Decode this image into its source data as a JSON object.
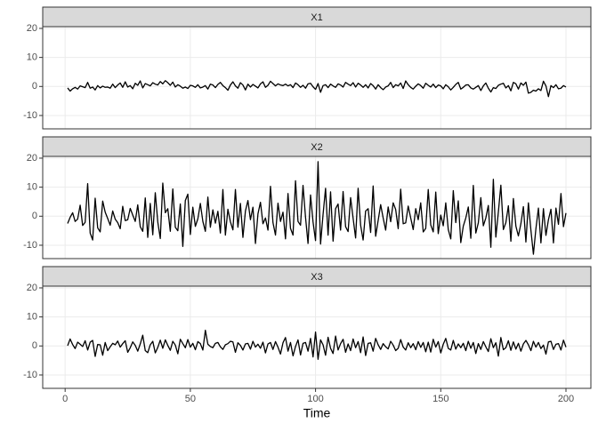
{
  "chart_data": {
    "type": "line",
    "facet": true,
    "x_label": "Time",
    "x": [
      1,
      2,
      3,
      4,
      5,
      6,
      7,
      8,
      9,
      10,
      11,
      12,
      13,
      14,
      15,
      16,
      17,
      18,
      19,
      20,
      21,
      22,
      23,
      24,
      25,
      26,
      27,
      28,
      29,
      30,
      31,
      32,
      33,
      34,
      35,
      36,
      37,
      38,
      39,
      40,
      41,
      42,
      43,
      44,
      45,
      46,
      47,
      48,
      49,
      50,
      51,
      52,
      53,
      54,
      55,
      56,
      57,
      58,
      59,
      60,
      61,
      62,
      63,
      64,
      65,
      66,
      67,
      68,
      69,
      70,
      71,
      72,
      73,
      74,
      75,
      76,
      77,
      78,
      79,
      80,
      81,
      82,
      83,
      84,
      85,
      86,
      87,
      88,
      89,
      90,
      91,
      92,
      93,
      94,
      95,
      96,
      97,
      98,
      99,
      100,
      101,
      102,
      103,
      104,
      105,
      106,
      107,
      108,
      109,
      110,
      111,
      112,
      113,
      114,
      115,
      116,
      117,
      118,
      119,
      120,
      121,
      122,
      123,
      124,
      125,
      126,
      127,
      128,
      129,
      130,
      131,
      132,
      133,
      134,
      135,
      136,
      137,
      138,
      139,
      140,
      141,
      142,
      143,
      144,
      145,
      146,
      147,
      148,
      149,
      150,
      151,
      152,
      153,
      154,
      155,
      156,
      157,
      158,
      159,
      160,
      161,
      162,
      163,
      164,
      165,
      166,
      167,
      168,
      169,
      170,
      171,
      172,
      173,
      174,
      175,
      176,
      177,
      178,
      179,
      180,
      181,
      182,
      183,
      184,
      185,
      186,
      187,
      188,
      189,
      190,
      191,
      192,
      193,
      194,
      195,
      196,
      197,
      198,
      199,
      200
    ],
    "series": [
      {
        "name": "X1",
        "color": "#000000",
        "values": [
          -0.5,
          -1.6,
          -0.8,
          -0.3,
          -0.9,
          0.2,
          -0.1,
          -0.4,
          1.4,
          -0.6,
          -0.2,
          -1.2,
          0.3,
          -0.5,
          0.1,
          -0.3,
          -0.2,
          -0.6,
          0.8,
          -0.4,
          0.5,
          1.2,
          -0.3,
          1.6,
          -0.2,
          0.3,
          -0.8,
          1.1,
          0.4,
          1.9,
          -0.5,
          1.0,
          0.6,
          0.2,
          1.3,
          0.8,
          0.5,
          1.7,
          0.9,
          2.0,
          1.3,
          0.4,
          1.5,
          -0.2,
          0.6,
          0.1,
          -0.6,
          -0.2,
          -0.7,
          0.4,
          0.2,
          -0.3,
          0.6,
          -0.5,
          -0.2,
          0.3,
          -0.9,
          0.8,
          0.5,
          -0.4,
          0.7,
          1.4,
          0.3,
          -0.4,
          -1.3,
          0.5,
          1.6,
          0.2,
          -0.6,
          1.3,
          0.5,
          -1.2,
          0.8,
          -0.2,
          0.7,
          0.1,
          -0.5,
          0.9,
          1.6,
          -0.3,
          0.4,
          1.8,
          1.0,
          0.2,
          0.9,
          0.5,
          0.3,
          0.8,
          0.2,
          0.6,
          -0.4,
          1.2,
          0.6,
          -0.3,
          0.4,
          -0.6,
          0.9,
          1.1,
          -0.1,
          -1.0,
          1.0,
          -2.0,
          0.3,
          0.6,
          -0.4,
          0.8,
          0.2,
          -0.3,
          0.9,
          0.5,
          -0.2,
          1.4,
          0.8,
          0.3,
          1.3,
          -0.2,
          1.1,
          0.5,
          -0.3,
          0.6,
          -0.5,
          1.0,
          0.3,
          -0.9,
          0.6,
          -0.4,
          -1.1,
          -0.2,
          0.2,
          1.4,
          -0.4,
          0.6,
          0.2,
          1.2,
          -0.7,
          1.9,
          0.6,
          -0.3,
          -0.9,
          0.1,
          0.9,
          0.3,
          -0.6,
          1.1,
          0.4,
          -0.2,
          0.8,
          -0.4,
          0.5,
          0.2,
          -0.8,
          0.6,
          -0.1,
          -1.2,
          -0.3,
          0.7,
          1.4,
          -0.9,
          -0.3,
          0.5,
          0.6,
          -0.5,
          -0.9,
          -0.3,
          0.3,
          -1.4,
          0.2,
          1.2,
          -0.6,
          -1.9,
          -0.4,
          -0.7,
          0.4,
          0.8,
          1.1,
          -0.5,
          0.3,
          -1.5,
          1.4,
          0.9,
          -0.9,
          1.2,
          0.4,
          1.5,
          -2.3,
          -2.0,
          -1.3,
          -1.6,
          -0.8,
          -1.4,
          1.8,
          0.2,
          -3.5,
          0.3,
          -0.4,
          0.6,
          -0.8,
          -0.6,
          0.3,
          -0.2
        ]
      },
      {
        "name": "X2",
        "color": "#000000",
        "values": [
          -2.5,
          -0.4,
          1.2,
          -1.8,
          -1.0,
          3.8,
          -3.2,
          -2.1,
          11.2,
          -5.8,
          -8.2,
          6.2,
          -4.0,
          -5.4,
          5.2,
          1.4,
          -0.8,
          -3.1,
          1.8,
          -1.0,
          -2.2,
          -4.3,
          3.4,
          -1.5,
          -1.2,
          2.7,
          0.4,
          -1.8,
          3.9,
          -3.6,
          -5.2,
          6.3,
          -7.3,
          4.4,
          -6.4,
          8.1,
          -2.0,
          -7.7,
          11.4,
          1.2,
          2.6,
          -5.2,
          9.4,
          -3.8,
          -5.0,
          4.2,
          -10.4,
          5.4,
          7.6,
          -6.3,
          3.1,
          -3.5,
          -0.9,
          4.4,
          -1.8,
          -5.2,
          6.6,
          -3.8,
          2.2,
          -2.4,
          1.7,
          -5.8,
          9.2,
          -6.5,
          2.4,
          -1.9,
          -4.7,
          9.2,
          -3.8,
          4.4,
          -7.3,
          1.8,
          5.4,
          -1.2,
          3.1,
          -9.4,
          0.8,
          4.8,
          -2.6,
          -0.6,
          -4.8,
          10.3,
          -2.2,
          -6.5,
          4.5,
          -1.8,
          1.4,
          -7.8,
          7.8,
          -4.2,
          -6.5,
          12.2,
          -1.8,
          -3.1,
          10.6,
          -0.4,
          -9.4,
          7.3,
          -2.0,
          -8.4,
          18.8,
          -9.6,
          0.6,
          9.6,
          -6.5,
          8.4,
          -8.6,
          2.6,
          4.2,
          -4.8,
          8.5,
          -3.6,
          -5.3,
          6.4,
          -0.7,
          -7.5,
          9.6,
          -3.1,
          -8.2,
          1.8,
          2.6,
          -5.6,
          10.4,
          -6.9,
          -1.5,
          4.0,
          -0.6,
          -4.8,
          3.2,
          -1.9,
          4.6,
          2.3,
          -4.3,
          9.3,
          -2.6,
          -2.3,
          3.5,
          -0.6,
          -4.6,
          2.6,
          -1.2,
          4.6,
          -5.4,
          -4.2,
          9.2,
          -3.0,
          -5.4,
          8.3,
          -6.0,
          0.4,
          -3.3,
          4.6,
          -4.6,
          -7.8,
          8.8,
          -2.2,
          5.3,
          -9.1,
          -3.4,
          -0.6,
          3.2,
          -7.6,
          10.6,
          -5.8,
          -2.3,
          6.4,
          -3.3,
          -0.6,
          3.7,
          -10.7,
          12.7,
          -7.2,
          1.4,
          10.7,
          -4.6,
          -2.2,
          3.6,
          -8.6,
          6.1,
          -3.4,
          -6.8,
          -2.6,
          3.3,
          -8.9,
          4.6,
          -4.8,
          -13.1,
          -4.3,
          2.8,
          -9.2,
          2.6,
          -6.6,
          -1.2,
          2.4,
          -9.2,
          2.8,
          -2.8,
          7.8,
          -3.6,
          1.1
        ]
      },
      {
        "name": "X3",
        "color": "#000000",
        "values": [
          0.1,
          2.4,
          0.5,
          -0.9,
          1.3,
          0.6,
          -0.2,
          1.8,
          -1.4,
          1.3,
          1.9,
          -3.6,
          0.5,
          0.4,
          -3.2,
          1.2,
          -1.6,
          -0.3,
          0.9,
          0.4,
          1.7,
          -0.4,
          0.8,
          1.8,
          -2.2,
          -0.6,
          1.4,
          0.2,
          -1.8,
          0.7,
          3.7,
          -1.6,
          -2.3,
          0.4,
          1.6,
          -2.4,
          -0.5,
          2.0,
          -0.8,
          2.1,
          0.2,
          -1.5,
          1.6,
          0.3,
          -2.7,
          2.3,
          0.8,
          -0.6,
          2.2,
          -0.4,
          0.9,
          -1.3,
          1.5,
          0.8,
          -1.4,
          5.4,
          0.6,
          -0.2,
          -0.6,
          0.9,
          1.2,
          -0.3,
          -1.2,
          0.4,
          0.8,
          1.6,
          1.4,
          -2.2,
          1.1,
          0.2,
          -1.4,
          0.7,
          0.9,
          -1.1,
          1.6,
          -0.4,
          0.6,
          -0.8,
          1.3,
          -2.4,
          0.7,
          1.2,
          -1.2,
          1.5,
          -0.4,
          -2.8,
          1.1,
          2.9,
          -1.8,
          1.2,
          -3.4,
          -0.2,
          2.1,
          -3.1,
          0.9,
          1.2,
          -1.8,
          2.6,
          -3.8,
          4.8,
          -4.6,
          2.1,
          0.4,
          -3.2,
          3.0,
          -0.8,
          -2.6,
          3.4,
          -1.4,
          0.8,
          2.3,
          -2.2,
          0.7,
          -1.6,
          2.4,
          -0.6,
          1.5,
          -2.3,
          3.1,
          -3.3,
          0.9,
          1.1,
          -1.8,
          2.6,
          0.4,
          -1.2,
          0.8,
          -0.3,
          -1.0,
          1.6,
          0.3,
          -1.6,
          -0.8,
          2.2,
          -0.4,
          -1.4,
          1.1,
          -0.6,
          0.8,
          -1.3,
          1.5,
          -0.5,
          1.2,
          -2.0,
          1.3,
          -2.1,
          2.3,
          -0.4,
          1.5,
          -2.4,
          0.6,
          2.6,
          -0.8,
          -1.4,
          1.9,
          -1.1,
          0.7,
          -0.6,
          0.9,
          -1.6,
          1.6,
          -0.8,
          1.2,
          -2.6,
          0.8,
          -1.2,
          1.5,
          -0.3,
          -1.9,
          2.5,
          -0.6,
          1.1,
          -3.5,
          2.9,
          -1.3,
          -0.6,
          1.8,
          -1.5,
          1.4,
          -1.1,
          0.9,
          -1.8,
          0.7,
          1.9,
          0.4,
          -1.6,
          1.6,
          -0.4,
          1.2,
          -0.9,
          0.3,
          -2.8,
          1.4,
          1.6,
          -1.2,
          0.6,
          0.8,
          -1.4,
          2.0,
          -0.4
        ]
      }
    ],
    "xlim": [
      -8.95,
      209.95
    ],
    "xticks": [
      0,
      50,
      100,
      150,
      200
    ],
    "ylim": [
      -14.6,
      20.6
    ],
    "yticks": [
      -10,
      0,
      10,
      20
    ],
    "grid": true
  }
}
